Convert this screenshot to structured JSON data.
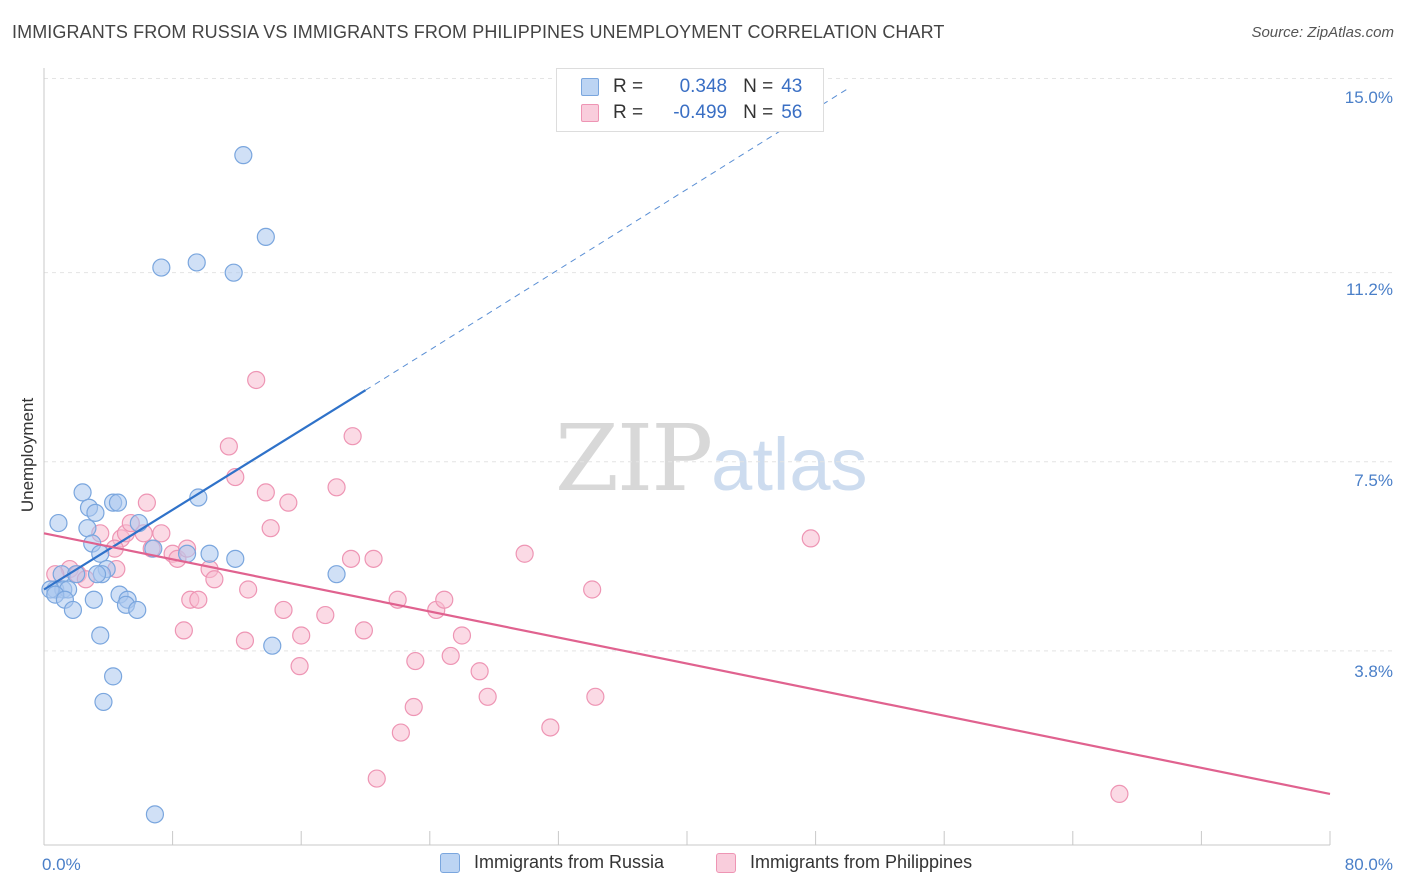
{
  "title": "IMMIGRANTS FROM RUSSIA VS IMMIGRANTS FROM PHILIPPINES UNEMPLOYMENT CORRELATION CHART",
  "source": "Source: ZipAtlas.com",
  "watermark": {
    "zip": "ZIP",
    "atlas": "atlas"
  },
  "colors": {
    "russia_fill": "#a9c7ef",
    "russia_stroke": "#7aa6de",
    "russia_line": "#2f72c9",
    "philippines_fill": "#f7bcd0",
    "philippines_stroke": "#ee95b4",
    "philippines_line": "#e0628f",
    "tick_text": "#4a7fc8"
  },
  "legend": {
    "rows": [
      {
        "r_label": "R =",
        "r_value": "0.348",
        "n_label": "N =",
        "n_value": "43"
      },
      {
        "r_label": "R =",
        "r_value": "-0.499",
        "n_label": "N =",
        "n_value": "56"
      }
    ]
  },
  "bottom_legend": {
    "russia": "Immigrants from Russia",
    "philippines": "Immigrants from Philippines"
  },
  "chart_data": {
    "type": "scatter",
    "title": "IMMIGRANTS FROM RUSSIA VS IMMIGRANTS FROM PHILIPPINES UNEMPLOYMENT CORRELATION CHART",
    "xlabel": "",
    "ylabel": "Unemployment",
    "xlim": [
      0,
      80
    ],
    "ylim": [
      0,
      15.6
    ],
    "x_tick_labels": [
      "0.0%",
      "80.0%"
    ],
    "y_ticks": [
      3.8,
      7.5,
      11.2,
      15.0
    ],
    "y_tick_labels": [
      "3.8%",
      "7.5%",
      "11.2%",
      "15.0%"
    ],
    "grid": true,
    "legend_position": "top-center",
    "series": [
      {
        "name": "Immigrants from Russia",
        "R": 0.348,
        "N": 43,
        "trend": {
          "x": [
            0.0,
            20.0
          ],
          "y": [
            5.0,
            8.9
          ],
          "dashed_extension_to": [
            50.0,
            14.8
          ]
        },
        "points": [
          [
            12.4,
            13.5
          ],
          [
            13.8,
            11.9
          ],
          [
            9.5,
            11.4
          ],
          [
            7.3,
            11.3
          ],
          [
            11.8,
            11.2
          ],
          [
            2.4,
            6.9
          ],
          [
            0.9,
            6.3
          ],
          [
            2.8,
            6.6
          ],
          [
            3.2,
            6.5
          ],
          [
            4.3,
            6.7
          ],
          [
            4.6,
            6.7
          ],
          [
            9.6,
            6.8
          ],
          [
            2.7,
            6.2
          ],
          [
            5.9,
            6.3
          ],
          [
            3.0,
            5.9
          ],
          [
            3.5,
            5.7
          ],
          [
            6.8,
            5.8
          ],
          [
            8.9,
            5.7
          ],
          [
            10.3,
            5.7
          ],
          [
            11.9,
            5.6
          ],
          [
            3.9,
            5.4
          ],
          [
            3.6,
            5.3
          ],
          [
            3.3,
            5.3
          ],
          [
            1.1,
            5.3
          ],
          [
            2.0,
            5.3
          ],
          [
            0.7,
            5.0
          ],
          [
            1.2,
            5.0
          ],
          [
            1.5,
            5.0
          ],
          [
            0.4,
            5.0
          ],
          [
            0.7,
            4.9
          ],
          [
            1.3,
            4.8
          ],
          [
            3.1,
            4.8
          ],
          [
            4.7,
            4.9
          ],
          [
            5.2,
            4.8
          ],
          [
            5.1,
            4.7
          ],
          [
            5.8,
            4.6
          ],
          [
            1.8,
            4.6
          ],
          [
            3.5,
            4.1
          ],
          [
            18.2,
            5.3
          ],
          [
            14.2,
            3.9
          ],
          [
            4.3,
            3.3
          ],
          [
            3.7,
            2.8
          ],
          [
            6.9,
            0.6
          ]
        ]
      },
      {
        "name": "Immigrants from Philippines",
        "R": -0.499,
        "N": 56,
        "trend": {
          "x": [
            0.0,
            80.0
          ],
          "y": [
            6.1,
            1.0
          ]
        },
        "points": [
          [
            13.2,
            9.1
          ],
          [
            19.2,
            8.0
          ],
          [
            11.5,
            7.8
          ],
          [
            11.9,
            7.2
          ],
          [
            18.2,
            7.0
          ],
          [
            13.8,
            6.9
          ],
          [
            15.2,
            6.7
          ],
          [
            6.4,
            6.7
          ],
          [
            14.1,
            6.2
          ],
          [
            4.8,
            6.0
          ],
          [
            5.1,
            6.1
          ],
          [
            6.2,
            6.1
          ],
          [
            7.3,
            6.1
          ],
          [
            5.4,
            6.3
          ],
          [
            3.5,
            6.1
          ],
          [
            4.4,
            5.8
          ],
          [
            6.7,
            5.8
          ],
          [
            8.0,
            5.7
          ],
          [
            8.3,
            5.6
          ],
          [
            8.9,
            5.8
          ],
          [
            19.1,
            5.6
          ],
          [
            20.5,
            5.6
          ],
          [
            29.9,
            5.7
          ],
          [
            47.7,
            6.0
          ],
          [
            1.6,
            5.4
          ],
          [
            0.7,
            5.3
          ],
          [
            2.1,
            5.3
          ],
          [
            2.6,
            5.2
          ],
          [
            4.5,
            5.4
          ],
          [
            10.3,
            5.4
          ],
          [
            10.6,
            5.2
          ],
          [
            12.7,
            5.0
          ],
          [
            9.1,
            4.8
          ],
          [
            9.6,
            4.8
          ],
          [
            14.9,
            4.6
          ],
          [
            22.0,
            4.8
          ],
          [
            24.4,
            4.6
          ],
          [
            24.9,
            4.8
          ],
          [
            34.1,
            5.0
          ],
          [
            17.5,
            4.5
          ],
          [
            16.0,
            4.1
          ],
          [
            19.9,
            4.2
          ],
          [
            26.0,
            4.1
          ],
          [
            8.7,
            4.2
          ],
          [
            12.5,
            4.0
          ],
          [
            15.9,
            3.5
          ],
          [
            23.1,
            3.6
          ],
          [
            25.3,
            3.7
          ],
          [
            27.1,
            3.4
          ],
          [
            27.6,
            2.9
          ],
          [
            34.3,
            2.9
          ],
          [
            23.0,
            2.7
          ],
          [
            22.2,
            2.2
          ],
          [
            31.5,
            2.3
          ],
          [
            20.7,
            1.3
          ],
          [
            66.9,
            1.0
          ]
        ]
      }
    ]
  }
}
